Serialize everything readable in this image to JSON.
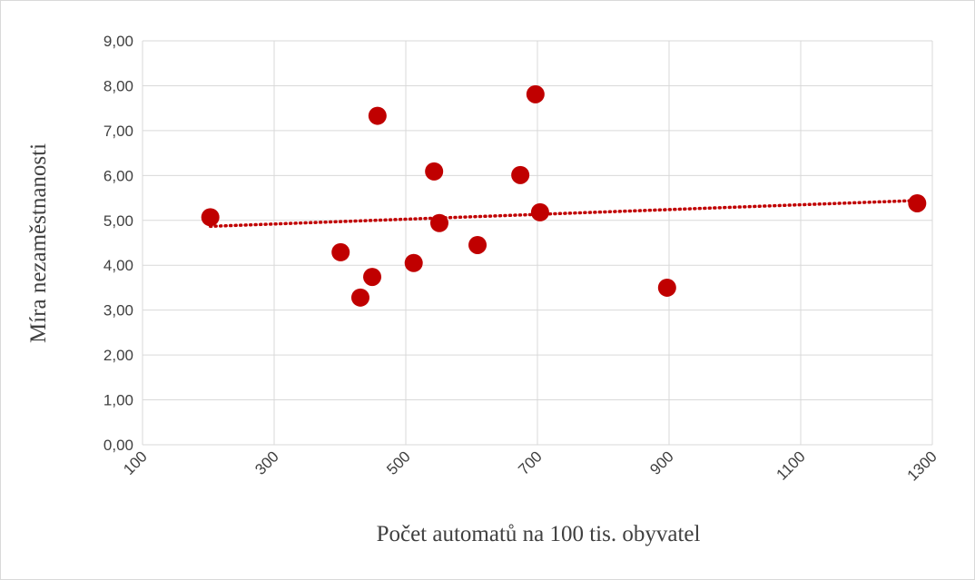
{
  "chart_data": {
    "type": "scatter",
    "xlabel": "Počet automatů na 100 tis. obyvatel",
    "ylabel": "Míra nezaměstnanosti",
    "color": "#c00000",
    "grid": true,
    "trendline": "linear",
    "x": [
      203,
      401,
      431,
      449,
      457,
      512,
      543,
      551,
      609,
      674,
      697,
      704,
      897,
      1277
    ],
    "values": [
      5.07,
      4.29,
      3.28,
      3.74,
      7.33,
      4.05,
      6.09,
      4.94,
      4.45,
      6.01,
      7.81,
      5.18,
      3.5,
      5.38
    ],
    "xlim": [
      100,
      1300
    ],
    "xticks": [
      100,
      300,
      500,
      700,
      900,
      1100,
      1300
    ],
    "ylim": [
      0,
      9
    ],
    "yticks": [
      {
        "value": 0,
        "label": "0,00"
      },
      {
        "value": 1,
        "label": "1,00"
      },
      {
        "value": 2,
        "label": "2,00"
      },
      {
        "value": 3,
        "label": "3,00"
      },
      {
        "value": 4,
        "label": "4,00"
      },
      {
        "value": 5,
        "label": "5,00"
      },
      {
        "value": 6,
        "label": "6,00"
      },
      {
        "value": 7,
        "label": "7,00"
      },
      {
        "value": 8,
        "label": "8,00"
      },
      {
        "value": 9,
        "label": "9,00"
      }
    ]
  }
}
